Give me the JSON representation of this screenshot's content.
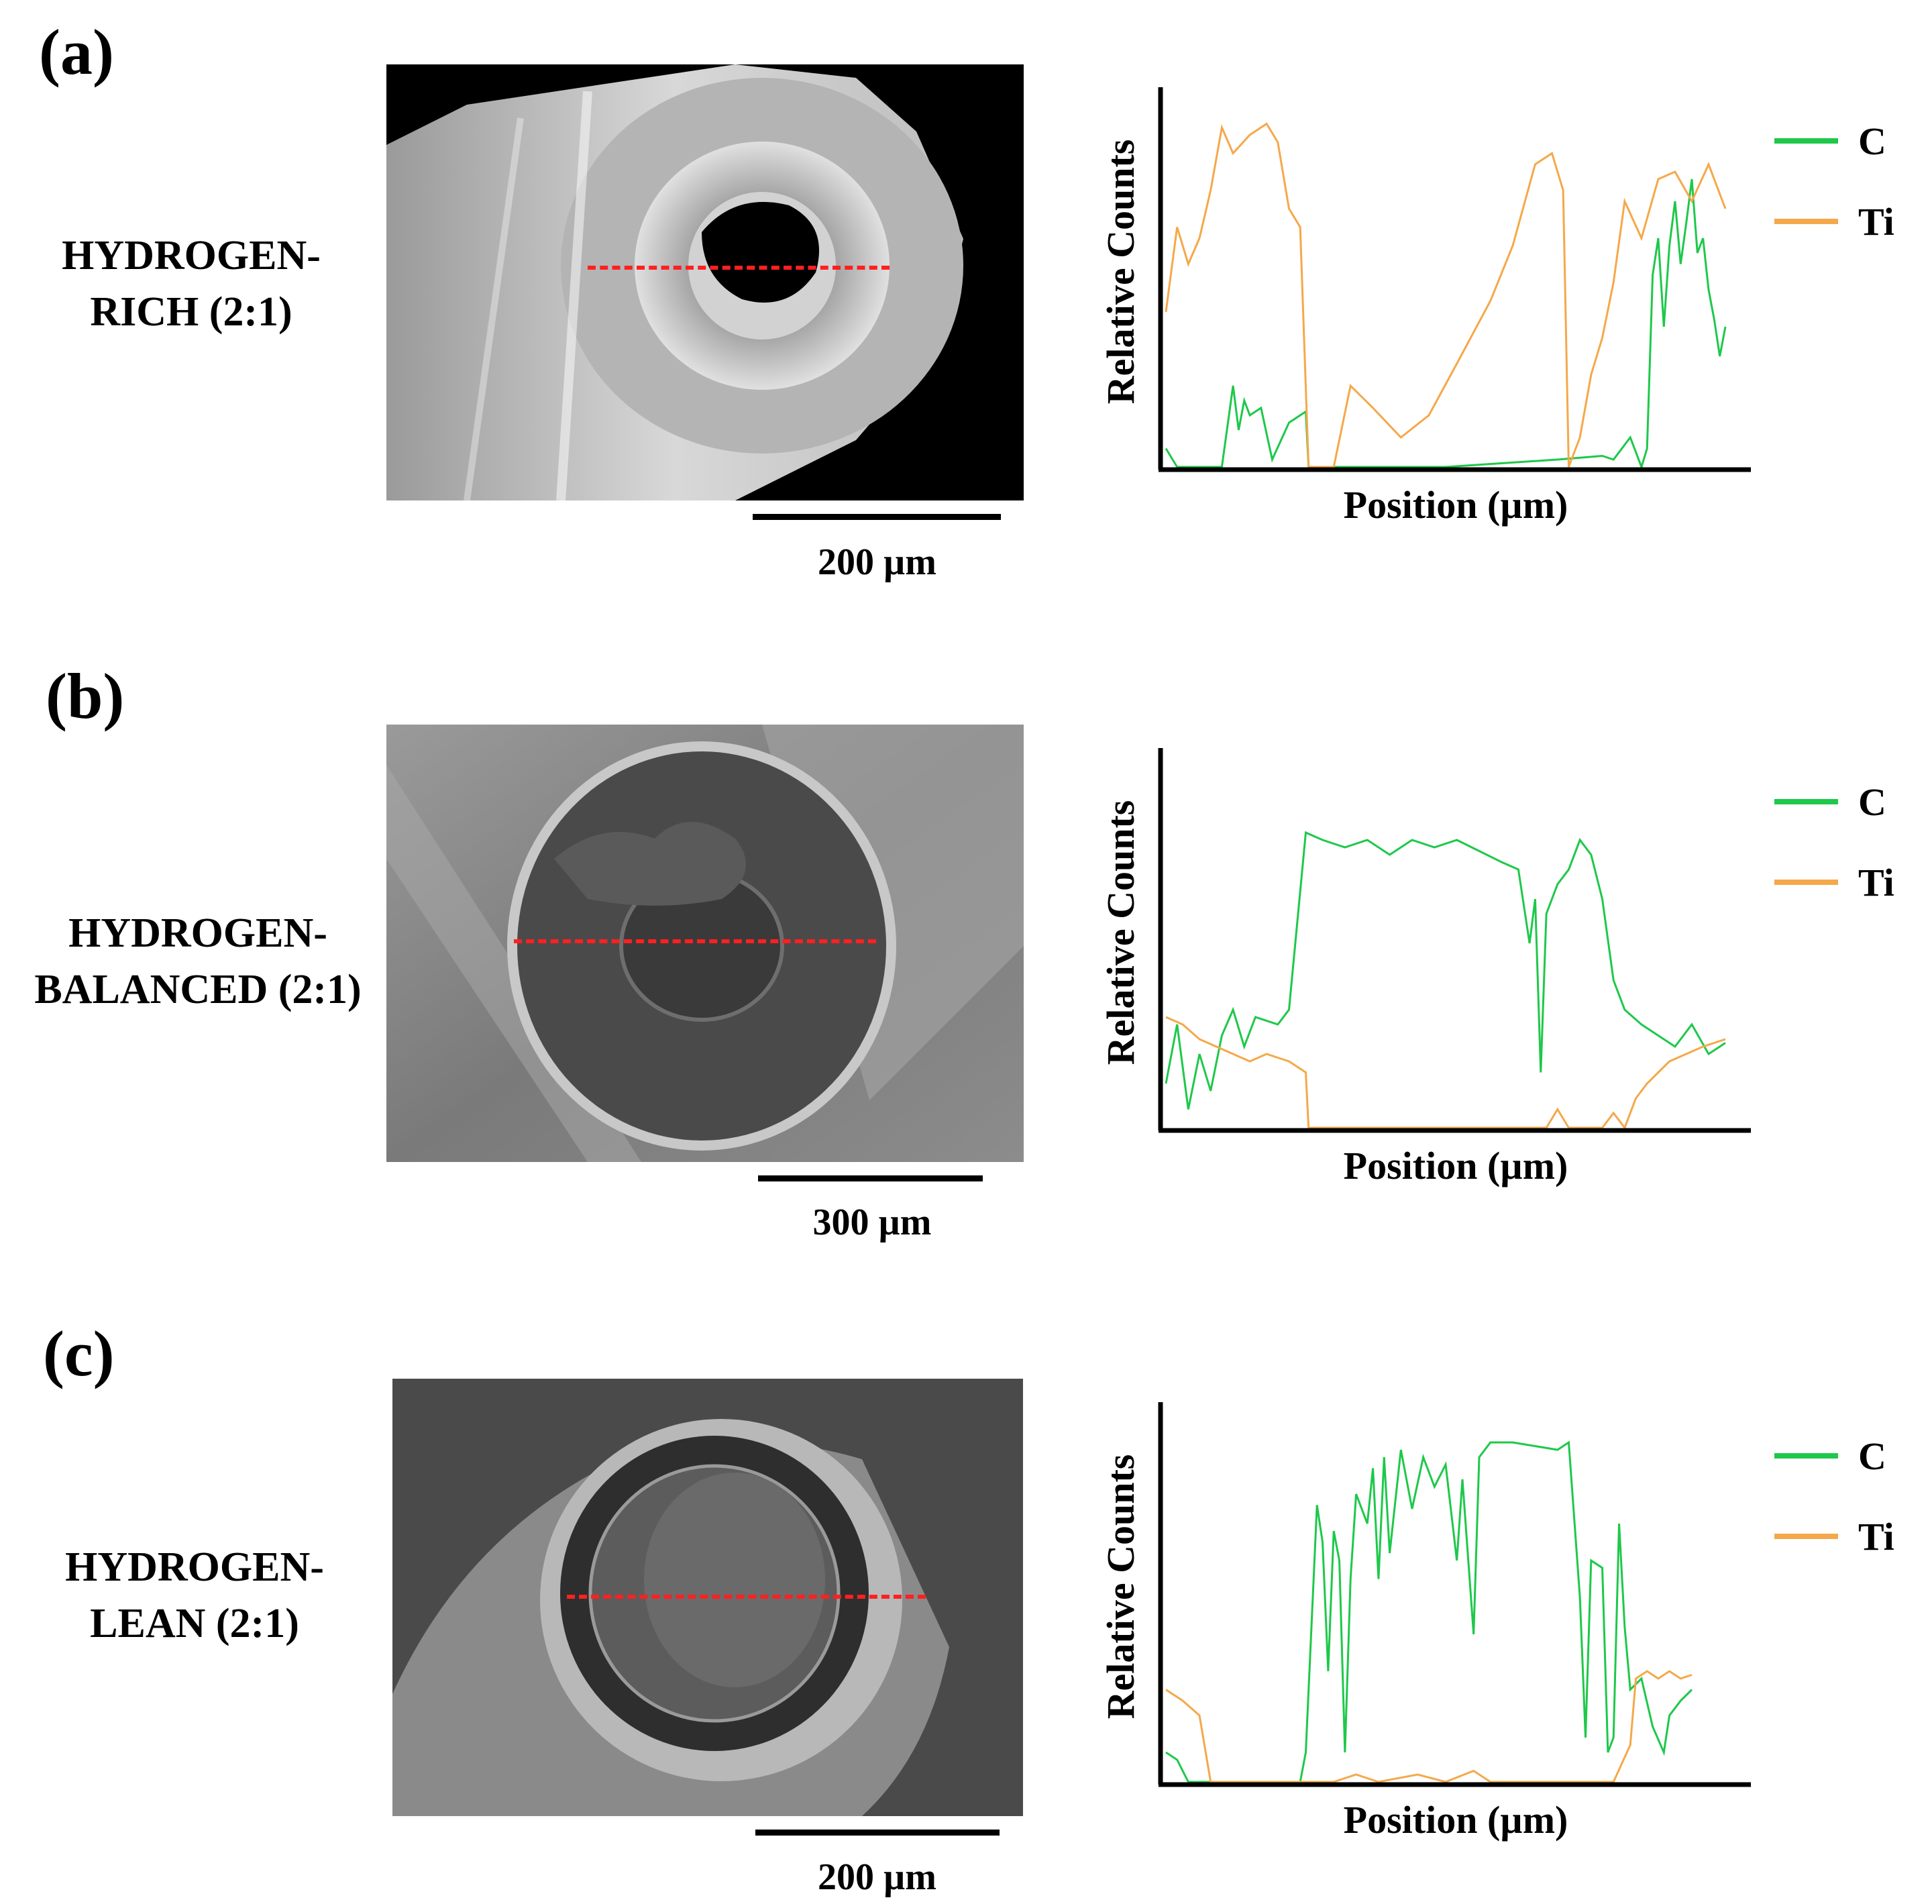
{
  "colors": {
    "carbon": "#1ec84a",
    "titanium": "#f5a84a",
    "scan_line": "#ff2020"
  },
  "panels": [
    {
      "letter": "(a)",
      "condition": "HYDROGEN-\nRICH (2:1)",
      "scale_bar": "200 µm",
      "sem_style": "rich",
      "chart_data": {
        "type": "line",
        "xlabel": "Position (µm)",
        "ylabel": "Relative Counts",
        "legend_position": "right",
        "series": [
          {
            "name": "C",
            "color": "#1ec84a",
            "points": [
              [
                0,
                0.05
              ],
              [
                0.02,
                0.0
              ],
              [
                0.1,
                0.0
              ],
              [
                0.12,
                0.22
              ],
              [
                0.13,
                0.1
              ],
              [
                0.14,
                0.18
              ],
              [
                0.15,
                0.14
              ],
              [
                0.17,
                0.16
              ],
              [
                0.19,
                0.02
              ],
              [
                0.22,
                0.12
              ],
              [
                0.25,
                0.15
              ],
              [
                0.255,
                0.0
              ],
              [
                0.3,
                0.0
              ],
              [
                0.5,
                0.0
              ],
              [
                0.6,
                0.01
              ],
              [
                0.7,
                0.02
              ],
              [
                0.78,
                0.03
              ],
              [
                0.8,
                0.02
              ],
              [
                0.83,
                0.08
              ],
              [
                0.85,
                0.0
              ],
              [
                0.86,
                0.05
              ],
              [
                0.87,
                0.52
              ],
              [
                0.88,
                0.62
              ],
              [
                0.89,
                0.38
              ],
              [
                0.9,
                0.6
              ],
              [
                0.91,
                0.72
              ],
              [
                0.92,
                0.55
              ],
              [
                0.93,
                0.66
              ],
              [
                0.94,
                0.78
              ],
              [
                0.95,
                0.58
              ],
              [
                0.96,
                0.62
              ],
              [
                0.97,
                0.48
              ],
              [
                0.98,
                0.4
              ],
              [
                0.99,
                0.3
              ],
              [
                1.0,
                0.38
              ]
            ]
          },
          {
            "name": "Ti",
            "color": "#f5a84a",
            "points": [
              [
                0,
                0.42
              ],
              [
                0.02,
                0.65
              ],
              [
                0.04,
                0.55
              ],
              [
                0.06,
                0.62
              ],
              [
                0.08,
                0.75
              ],
              [
                0.1,
                0.92
              ],
              [
                0.12,
                0.85
              ],
              [
                0.15,
                0.9
              ],
              [
                0.18,
                0.93
              ],
              [
                0.2,
                0.88
              ],
              [
                0.22,
                0.7
              ],
              [
                0.24,
                0.65
              ],
              [
                0.255,
                0.0
              ],
              [
                0.3,
                0.0
              ],
              [
                0.33,
                0.22
              ],
              [
                0.37,
                0.16
              ],
              [
                0.42,
                0.08
              ],
              [
                0.47,
                0.14
              ],
              [
                0.52,
                0.28
              ],
              [
                0.58,
                0.45
              ],
              [
                0.62,
                0.6
              ],
              [
                0.66,
                0.82
              ],
              [
                0.69,
                0.85
              ],
              [
                0.71,
                0.75
              ],
              [
                0.72,
                0.0
              ],
              [
                0.74,
                0.08
              ],
              [
                0.76,
                0.25
              ],
              [
                0.78,
                0.35
              ],
              [
                0.8,
                0.5
              ],
              [
                0.82,
                0.72
              ],
              [
                0.85,
                0.62
              ],
              [
                0.88,
                0.78
              ],
              [
                0.91,
                0.8
              ],
              [
                0.94,
                0.72
              ],
              [
                0.97,
                0.82
              ],
              [
                1.0,
                0.7
              ]
            ]
          }
        ]
      }
    },
    {
      "letter": "(b)",
      "condition": "HYDROGEN-\nBALANCED (2:1)",
      "scale_bar": "300 µm",
      "sem_style": "balanced",
      "chart_data": {
        "type": "line",
        "xlabel": "Position (µm)",
        "ylabel": "Relative Counts",
        "legend_position": "right",
        "series": [
          {
            "name": "C",
            "color": "#1ec84a",
            "points": [
              [
                0,
                0.12
              ],
              [
                0.02,
                0.28
              ],
              [
                0.04,
                0.05
              ],
              [
                0.06,
                0.2
              ],
              [
                0.08,
                0.1
              ],
              [
                0.1,
                0.25
              ],
              [
                0.12,
                0.32
              ],
              [
                0.14,
                0.22
              ],
              [
                0.16,
                0.3
              ],
              [
                0.2,
                0.28
              ],
              [
                0.22,
                0.32
              ],
              [
                0.25,
                0.8
              ],
              [
                0.28,
                0.78
              ],
              [
                0.32,
                0.76
              ],
              [
                0.36,
                0.78
              ],
              [
                0.4,
                0.74
              ],
              [
                0.44,
                0.78
              ],
              [
                0.48,
                0.76
              ],
              [
                0.52,
                0.78
              ],
              [
                0.56,
                0.75
              ],
              [
                0.6,
                0.72
              ],
              [
                0.63,
                0.7
              ],
              [
                0.65,
                0.5
              ],
              [
                0.66,
                0.62
              ],
              [
                0.67,
                0.15
              ],
              [
                0.68,
                0.58
              ],
              [
                0.7,
                0.66
              ],
              [
                0.72,
                0.7
              ],
              [
                0.74,
                0.78
              ],
              [
                0.76,
                0.74
              ],
              [
                0.78,
                0.62
              ],
              [
                0.8,
                0.4
              ],
              [
                0.82,
                0.32
              ],
              [
                0.85,
                0.28
              ],
              [
                0.88,
                0.25
              ],
              [
                0.91,
                0.22
              ],
              [
                0.94,
                0.28
              ],
              [
                0.97,
                0.2
              ],
              [
                1.0,
                0.23
              ]
            ]
          },
          {
            "name": "Ti",
            "color": "#f5a84a",
            "points": [
              [
                0,
                0.3
              ],
              [
                0.03,
                0.28
              ],
              [
                0.06,
                0.24
              ],
              [
                0.09,
                0.22
              ],
              [
                0.12,
                0.2
              ],
              [
                0.15,
                0.18
              ],
              [
                0.18,
                0.2
              ],
              [
                0.22,
                0.18
              ],
              [
                0.25,
                0.15
              ],
              [
                0.255,
                0.0
              ],
              [
                0.3,
                0.0
              ],
              [
                0.5,
                0.0
              ],
              [
                0.6,
                0.0
              ],
              [
                0.68,
                0.0
              ],
              [
                0.7,
                0.05
              ],
              [
                0.72,
                0.0
              ],
              [
                0.78,
                0.0
              ],
              [
                0.8,
                0.04
              ],
              [
                0.82,
                0.0
              ],
              [
                0.84,
                0.08
              ],
              [
                0.86,
                0.12
              ],
              [
                0.88,
                0.15
              ],
              [
                0.9,
                0.18
              ],
              [
                0.93,
                0.2
              ],
              [
                0.96,
                0.22
              ],
              [
                1.0,
                0.24
              ]
            ]
          }
        ]
      }
    },
    {
      "letter": "(c)",
      "condition": "HYDROGEN-\nLEAN (2:1)",
      "scale_bar": "200 µm",
      "sem_style": "lean",
      "chart_data": {
        "type": "line",
        "xlabel": "Position (µm)",
        "ylabel": "Relative Counts",
        "legend_position": "right",
        "series": [
          {
            "name": "C",
            "color": "#1ec84a",
            "points": [
              [
                0,
                0.08
              ],
              [
                0.02,
                0.06
              ],
              [
                0.04,
                0.0
              ],
              [
                0.1,
                0.0
              ],
              [
                0.2,
                0.0
              ],
              [
                0.24,
                0.0
              ],
              [
                0.25,
                0.08
              ],
              [
                0.27,
                0.75
              ],
              [
                0.28,
                0.65
              ],
              [
                0.29,
                0.3
              ],
              [
                0.3,
                0.68
              ],
              [
                0.31,
                0.6
              ],
              [
                0.32,
                0.08
              ],
              [
                0.33,
                0.55
              ],
              [
                0.34,
                0.78
              ],
              [
                0.36,
                0.7
              ],
              [
                0.37,
                0.85
              ],
              [
                0.38,
                0.55
              ],
              [
                0.39,
                0.88
              ],
              [
                0.4,
                0.62
              ],
              [
                0.42,
                0.9
              ],
              [
                0.44,
                0.74
              ],
              [
                0.46,
                0.88
              ],
              [
                0.48,
                0.8
              ],
              [
                0.5,
                0.86
              ],
              [
                0.52,
                0.6
              ],
              [
                0.53,
                0.82
              ],
              [
                0.55,
                0.4
              ],
              [
                0.56,
                0.88
              ],
              [
                0.58,
                0.92
              ],
              [
                0.62,
                0.92
              ],
              [
                0.66,
                0.91
              ],
              [
                0.7,
                0.9
              ],
              [
                0.72,
                0.92
              ],
              [
                0.74,
                0.5
              ],
              [
                0.75,
                0.12
              ],
              [
                0.76,
                0.6
              ],
              [
                0.78,
                0.58
              ],
              [
                0.79,
                0.08
              ],
              [
                0.8,
                0.12
              ],
              [
                0.81,
                0.7
              ],
              [
                0.82,
                0.42
              ],
              [
                0.83,
                0.25
              ],
              [
                0.85,
                0.28
              ],
              [
                0.87,
                0.15
              ],
              [
                0.89,
                0.08
              ],
              [
                0.9,
                0.18
              ],
              [
                0.92,
                0.22
              ],
              [
                0.94,
                0.25
              ]
            ]
          },
          {
            "name": "Ti",
            "color": "#f5a84a",
            "points": [
              [
                0,
                0.25
              ],
              [
                0.03,
                0.22
              ],
              [
                0.06,
                0.18
              ],
              [
                0.08,
                0.0
              ],
              [
                0.2,
                0.0
              ],
              [
                0.3,
                0.0
              ],
              [
                0.34,
                0.02
              ],
              [
                0.38,
                0.0
              ],
              [
                0.45,
                0.02
              ],
              [
                0.5,
                0.0
              ],
              [
                0.55,
                0.03
              ],
              [
                0.58,
                0.0
              ],
              [
                0.7,
                0.0
              ],
              [
                0.8,
                0.0
              ],
              [
                0.83,
                0.1
              ],
              [
                0.84,
                0.28
              ],
              [
                0.86,
                0.3
              ],
              [
                0.88,
                0.28
              ],
              [
                0.9,
                0.3
              ],
              [
                0.92,
                0.28
              ],
              [
                0.94,
                0.29
              ]
            ]
          }
        ]
      }
    }
  ]
}
